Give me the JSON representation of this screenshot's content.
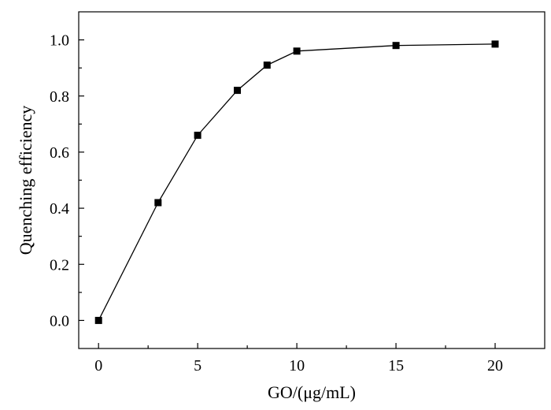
{
  "chart_data": {
    "type": "line",
    "title": "",
    "xlabel": "GO/(μg/mL)",
    "ylabel": "Quenching efficiency",
    "xlim": [
      -1,
      22.5
    ],
    "ylim": [
      -0.1,
      1.1
    ],
    "x_ticks": [
      0,
      5,
      10,
      15,
      20
    ],
    "x_tick_labels": [
      "0",
      "5",
      "10",
      "15",
      "20"
    ],
    "y_ticks": [
      0.0,
      0.2,
      0.4,
      0.6,
      0.8,
      1.0
    ],
    "y_tick_labels": [
      "0.0",
      "0.2",
      "0.4",
      "0.6",
      "0.8",
      "1.0"
    ],
    "grid": false,
    "series": [
      {
        "marker": "square",
        "color": "#000000",
        "x": [
          0,
          3,
          5,
          7,
          8.5,
          10,
          15,
          20
        ],
        "y": [
          0.0,
          0.42,
          0.66,
          0.82,
          0.91,
          0.96,
          0.98,
          0.985
        ]
      }
    ]
  }
}
